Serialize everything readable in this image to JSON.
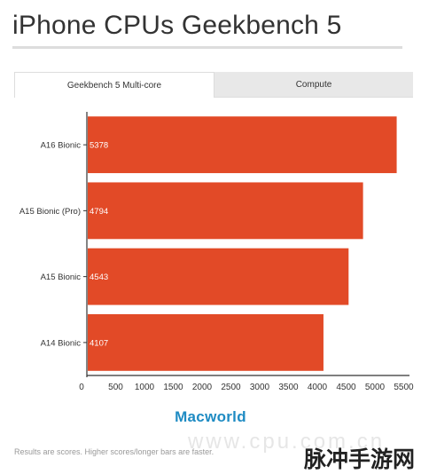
{
  "page": {
    "title": "iPhone CPUs Geekbench 5",
    "brand": "Macworld",
    "footnote": "Results are scores. Higher scores/longer bars are faster.",
    "watermark": "www.cpu.com.cn",
    "corner_logo": "脉冲手游网"
  },
  "tabs": [
    {
      "label": "Geekbench 5 Multi-core",
      "active": true
    },
    {
      "label": "Compute",
      "active": false
    }
  ],
  "colors": {
    "bar": "#e24a27",
    "axis": "#333333",
    "brand": "#1e8bc3"
  },
  "chart_data": {
    "type": "bar",
    "orientation": "horizontal",
    "categories": [
      "A16 Bionic",
      "A15 Bionic (Pro)",
      "A15 Bionic",
      "A14 Bionic"
    ],
    "values": [
      5378,
      4794,
      4543,
      4107
    ],
    "data_labels": [
      "5378",
      "4794",
      "4543",
      "4107"
    ],
    "xticks": [
      "0",
      "500",
      "1000",
      "1500",
      "2000",
      "2500",
      "3000",
      "3500",
      "4000",
      "4500",
      "5000",
      "5500"
    ],
    "xlim": [
      0,
      5600
    ],
    "grid": false,
    "legend": "none"
  }
}
